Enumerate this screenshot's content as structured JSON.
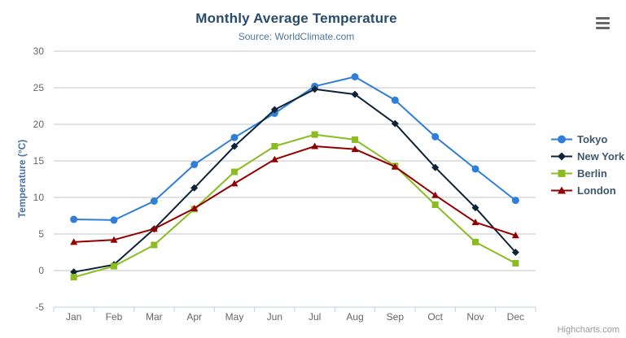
{
  "chart": {
    "title": "Monthly Average Temperature",
    "subtitle": "Source: WorldClimate.com",
    "credits": "Highcharts.com",
    "context_menu_icon": "hamburger-icon"
  },
  "chart_data": {
    "type": "line",
    "title": "Monthly Average Temperature",
    "subtitle": "Source: WorldClimate.com",
    "xlabel": "",
    "ylabel": "Temperature (°C)",
    "categories": [
      "Jan",
      "Feb",
      "Mar",
      "Apr",
      "May",
      "Jun",
      "Jul",
      "Aug",
      "Sep",
      "Oct",
      "Nov",
      "Dec"
    ],
    "series": [
      {
        "name": "Tokyo",
        "color": "#2f7ed8",
        "marker": "circle",
        "values": [
          7.0,
          6.9,
          9.5,
          14.5,
          18.2,
          21.5,
          25.2,
          26.5,
          23.3,
          18.3,
          13.9,
          9.6
        ]
      },
      {
        "name": "New York",
        "color": "#0d233a",
        "marker": "diamond",
        "values": [
          -0.2,
          0.8,
          5.7,
          11.3,
          17.0,
          22.0,
          24.8,
          24.1,
          20.1,
          14.1,
          8.6,
          2.5
        ]
      },
      {
        "name": "Berlin",
        "color": "#8bbc21",
        "marker": "square",
        "values": [
          -0.9,
          0.6,
          3.5,
          8.4,
          13.5,
          17.0,
          18.6,
          17.9,
          14.3,
          9.0,
          3.9,
          1.0
        ]
      },
      {
        "name": "London",
        "color": "#910000",
        "marker": "triangle",
        "values": [
          3.9,
          4.2,
          5.7,
          8.5,
          11.9,
          15.2,
          17.0,
          16.6,
          14.2,
          10.3,
          6.6,
          4.8
        ]
      }
    ],
    "ylim": [
      -5,
      30
    ],
    "yticks": [
      -5,
      0,
      5,
      10,
      15,
      20,
      25,
      30
    ],
    "grid": true,
    "legend_position": "right",
    "colors": {
      "grid_line": "#c6c6c6",
      "axis_line": "#c0d0e0",
      "axis_label": "#666666",
      "axis_title": "#4572a7",
      "title": "#274b6d",
      "subtitle": "#4d759e",
      "legend_text": "#3e576f",
      "credits_text": "#999999"
    }
  }
}
